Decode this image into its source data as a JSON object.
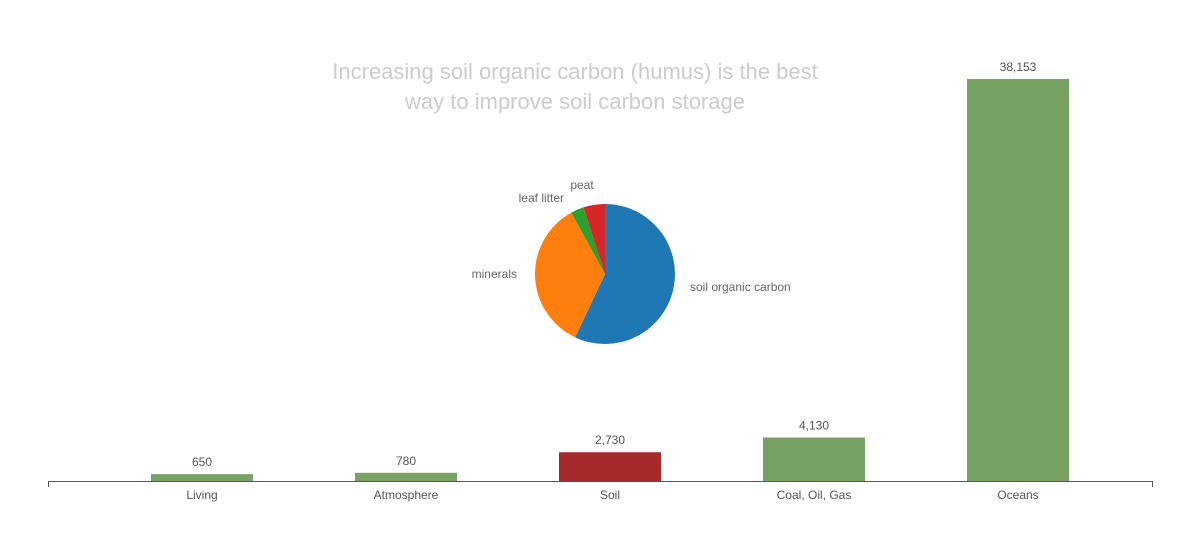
{
  "chart_data": [
    {
      "type": "bar",
      "title_lines": [
        "Increasing soil organic carbon (humus) is the best",
        "way to improve soil carbon storage"
      ],
      "categories": [
        "Living",
        "Atmosphere",
        "Soil",
        "Coal, Oil, Gas",
        "Oceans"
      ],
      "values": [
        650,
        780,
        2730,
        4130,
        38153
      ],
      "value_labels": [
        "650",
        "780",
        "2,730",
        "4,130",
        "38,153"
      ],
      "bar_colors": [
        "#77a264",
        "#77a264",
        "#a52a2a",
        "#77a264",
        "#77a264"
      ],
      "ylim": [
        0,
        38153
      ],
      "xlabel": "",
      "ylabel": "",
      "grid": false
    },
    {
      "type": "pie",
      "slices": [
        {
          "label": "soil organic carbon",
          "value": 57,
          "color": "#1f77b4"
        },
        {
          "label": "minerals",
          "value": 35,
          "color": "#ff7f0e"
        },
        {
          "label": "leaf litter",
          "value": 3,
          "color": "#2ca02c"
        },
        {
          "label": "peat",
          "value": 5,
          "color": "#d62728"
        }
      ]
    }
  ]
}
